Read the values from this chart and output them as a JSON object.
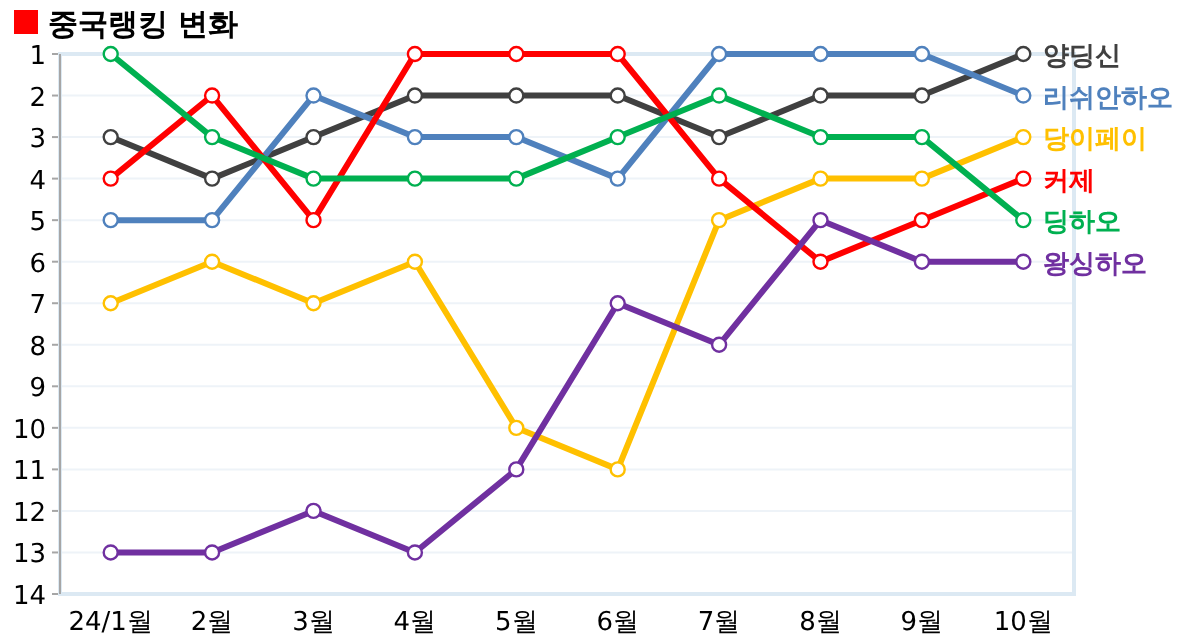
{
  "chart_data": {
    "type": "line",
    "title": "중국랭킹 변화",
    "categories": [
      "24/1월",
      "2월",
      "3월",
      "4월",
      "5월",
      "6월",
      "7월",
      "8월",
      "9월",
      "10월"
    ],
    "ylim": [
      14,
      1
    ],
    "yticks": [
      1,
      2,
      3,
      4,
      5,
      6,
      7,
      8,
      9,
      10,
      11,
      12,
      13,
      14
    ],
    "grid": "y",
    "marker": "circle",
    "series": [
      {
        "name": "양딩신",
        "color": "#404040",
        "values": [
          3,
          4,
          3,
          2,
          2,
          2,
          3,
          2,
          2,
          1
        ]
      },
      {
        "name": "리쉬안하오",
        "color": "#4f81bd",
        "values": [
          5,
          5,
          2,
          3,
          3,
          4,
          1,
          1,
          1,
          2
        ]
      },
      {
        "name": "당이페이",
        "color": "#ffc000",
        "values": [
          7,
          6,
          7,
          6,
          10,
          11,
          5,
          4,
          4,
          3
        ]
      },
      {
        "name": "커제",
        "color": "#ff0000",
        "values": [
          4,
          2,
          5,
          1,
          1,
          1,
          4,
          6,
          5,
          4
        ]
      },
      {
        "name": "딩하오",
        "color": "#00b050",
        "values": [
          1,
          3,
          4,
          4,
          4,
          3,
          2,
          3,
          3,
          5
        ]
      },
      {
        "name": "왕싱하오",
        "color": "#7030a0",
        "values": [
          13,
          13,
          12,
          13,
          11,
          7,
          8,
          5,
          6,
          6
        ]
      }
    ]
  }
}
